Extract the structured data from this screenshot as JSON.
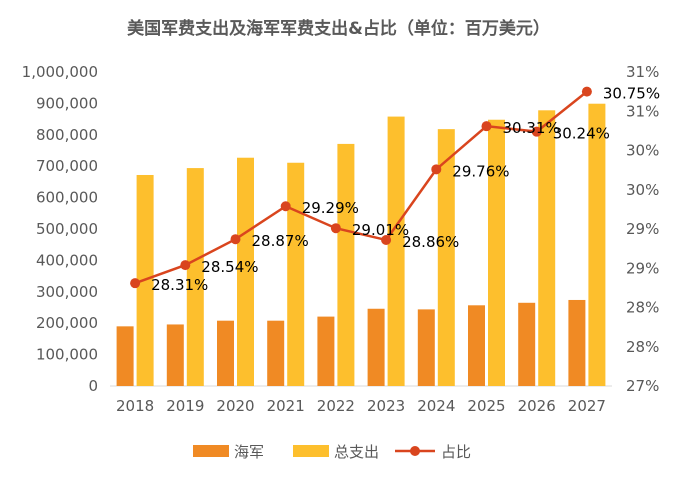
{
  "chart_data": {
    "type": "bar",
    "title": "美国军费支出及海军军费支出&占比（单位：百万美元）",
    "categories": [
      "2018",
      "2019",
      "2020",
      "2021",
      "2022",
      "2023",
      "2024",
      "2025",
      "2026",
      "2027"
    ],
    "series": [
      {
        "name": "海军",
        "type": "bar",
        "axis": "left",
        "color": "#F08A24",
        "values": [
          190000,
          196000,
          208000,
          208000,
          221000,
          246000,
          244000,
          257000,
          265000,
          274000
        ]
      },
      {
        "name": "总支出",
        "type": "bar",
        "axis": "left",
        "color": "#FDBF2D",
        "values": [
          672000,
          694000,
          727000,
          711000,
          771000,
          858000,
          818000,
          848000,
          878000,
          899000
        ]
      },
      {
        "name": "占比",
        "type": "line",
        "axis": "right",
        "color": "#D9451E",
        "values": [
          0.2831,
          0.2854,
          0.2887,
          0.2929,
          0.2901,
          0.2886,
          0.2976,
          0.3031,
          0.3024,
          0.3075
        ],
        "labels": [
          "28.31%",
          "28.54%",
          "28.87%",
          "29.29%",
          "29.01%",
          "28.86%",
          "29.76%",
          "30.31%",
          "30.24%",
          "30.75%"
        ]
      }
    ],
    "y_left": {
      "ylim": [
        0,
        1000000
      ],
      "ticks": [
        "0",
        "100,000",
        "200,000",
        "300,000",
        "400,000",
        "500,000",
        "600,000",
        "700,000",
        "800,000",
        "900,000",
        "1,000,000"
      ]
    },
    "y_right": {
      "ylim": [
        0.27,
        0.31
      ],
      "ticks": [
        "27%",
        "28%",
        "28%",
        "29%",
        "29%",
        "30%",
        "30%",
        "31%",
        "31%"
      ]
    },
    "legend": {
      "position": "bottom",
      "entries": [
        "海军",
        "总支出",
        "占比"
      ]
    },
    "grid": false
  }
}
